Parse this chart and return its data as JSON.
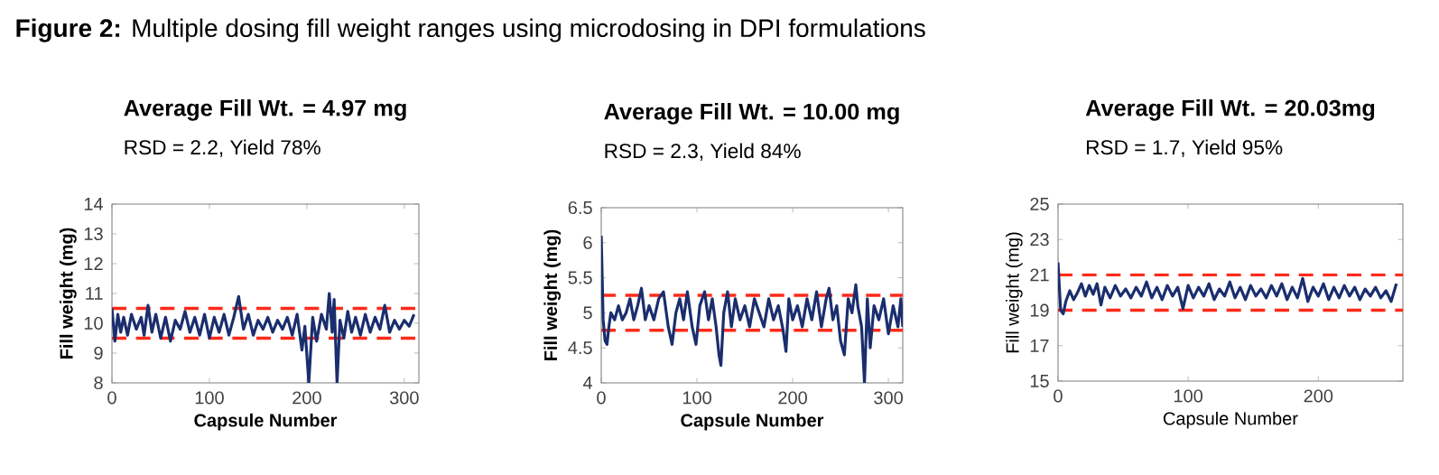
{
  "chart_data": [
    {
      "type": "line",
      "title": "Average Fill Wt. = 4.97 mg",
      "subtitle": "RSD = 2.2, Yield 78%",
      "xlabel": "Capsule Number",
      "ylabel": "Fill weight (mg)",
      "annotations": [
        "**Figure 2:** Multiple dosing fill weight ranges using microdosing in DPI formulations"
      ],
      "xlim": [
        0,
        315
      ],
      "xticks": [
        0,
        100,
        200,
        300
      ],
      "ylim": [
        8,
        14
      ],
      "yticks": [
        8,
        9,
        10,
        11,
        12,
        13,
        14
      ],
      "grid": false,
      "marker": "none",
      "line_style": "solid",
      "ref_lines": [
        {
          "axis": "y",
          "value": 9.5,
          "color": "#ff2a1a",
          "line_style": "dashed"
        },
        {
          "axis": "y",
          "value": 10.5,
          "color": "#ff2a1a",
          "line_style": "dashed"
        }
      ],
      "series": [
        {
          "color": "#1a2e6e",
          "x": [
            0,
            3,
            6,
            9,
            12,
            16,
            20,
            25,
            30,
            33,
            37,
            41,
            45,
            50,
            55,
            60,
            65,
            70,
            75,
            80,
            85,
            90,
            95,
            100,
            105,
            110,
            115,
            120,
            125,
            130,
            135,
            140,
            145,
            150,
            155,
            160,
            165,
            170,
            175,
            180,
            185,
            190,
            195,
            198,
            202,
            206,
            210,
            215,
            220,
            223,
            226,
            228,
            231,
            234,
            238,
            242,
            246,
            250,
            255,
            260,
            265,
            270,
            275,
            280,
            285,
            290,
            295,
            300,
            305,
            310
          ],
          "values": [
            10.5,
            9.4,
            10.3,
            9.7,
            10.2,
            9.6,
            10.3,
            9.8,
            10.2,
            9.6,
            10.6,
            9.7,
            10.3,
            9.5,
            10.2,
            9.4,
            10.1,
            9.8,
            10.4,
            9.7,
            10.2,
            9.6,
            10.3,
            9.5,
            10.2,
            9.7,
            10.3,
            9.6,
            10.2,
            10.9,
            9.8,
            10.3,
            9.6,
            10.1,
            9.8,
            10.2,
            9.7,
            10.1,
            9.8,
            10.2,
            9.6,
            10.3,
            9.1,
            9.9,
            8.0,
            10.2,
            9.4,
            10.3,
            9.8,
            11.0,
            9.7,
            10.8,
            8.0,
            10.1,
            9.5,
            10.4,
            9.7,
            10.2,
            9.6,
            10.3,
            9.7,
            10.2,
            9.8,
            10.6,
            9.7,
            10.1,
            9.8,
            10.1,
            9.9,
            10.3
          ]
        }
      ]
    },
    {
      "type": "line",
      "title": "Average Fill Wt. = 10.00 mg",
      "subtitle": "RSD = 2.3, Yield 84%",
      "xlabel": "Capsule Number",
      "ylabel": "Fill weight (mg)",
      "xlim": [
        0,
        315
      ],
      "xticks": [
        0,
        100,
        200,
        300
      ],
      "ylim": [
        4,
        6.5
      ],
      "yticks": [
        4,
        4.5,
        5,
        5.5,
        6,
        6.5
      ],
      "grid": false,
      "marker": "none",
      "line_style": "solid",
      "ref_lines": [
        {
          "axis": "y",
          "value": 4.75,
          "color": "#ff2a1a",
          "line_style": "dashed"
        },
        {
          "axis": "y",
          "value": 5.25,
          "color": "#ff2a1a",
          "line_style": "dashed"
        }
      ],
      "series": [
        {
          "color": "#1a2e6e",
          "x": [
            0,
            2,
            4,
            6,
            8,
            10,
            14,
            18,
            22,
            26,
            30,
            34,
            38,
            42,
            46,
            50,
            55,
            60,
            65,
            70,
            74,
            78,
            82,
            86,
            90,
            95,
            99,
            103,
            108,
            112,
            116,
            120,
            123,
            125,
            128,
            132,
            136,
            140,
            145,
            150,
            155,
            160,
            165,
            170,
            175,
            180,
            185,
            190,
            193,
            196,
            200,
            205,
            210,
            215,
            220,
            225,
            230,
            235,
            238,
            242,
            246,
            250,
            254,
            258,
            262,
            266,
            268,
            272,
            275,
            278,
            281,
            285,
            290,
            295,
            300,
            305,
            310,
            313,
            315
          ],
          "values": [
            6.1,
            4.9,
            4.6,
            4.55,
            4.8,
            5.0,
            4.9,
            5.1,
            4.9,
            5.0,
            5.2,
            4.9,
            5.1,
            5.35,
            4.9,
            5.1,
            4.9,
            5.2,
            5.3,
            4.8,
            4.55,
            5.0,
            5.2,
            4.9,
            5.3,
            4.8,
            4.55,
            5.1,
            5.3,
            4.9,
            5.2,
            4.8,
            4.4,
            4.25,
            5.0,
            5.3,
            4.8,
            5.2,
            4.9,
            5.1,
            4.8,
            5.2,
            5.0,
            4.8,
            5.2,
            4.9,
            5.1,
            4.75,
            4.45,
            5.2,
            4.9,
            5.1,
            4.8,
            5.2,
            4.9,
            5.3,
            4.8,
            5.2,
            5.35,
            4.9,
            5.1,
            4.6,
            4.4,
            5.2,
            5.0,
            5.4,
            5.1,
            4.8,
            4.0,
            5.2,
            4.5,
            5.1,
            4.9,
            5.2,
            4.7,
            5.1,
            4.8,
            5.2,
            4.8
          ]
        }
      ]
    },
    {
      "type": "line",
      "title": "Average Fill Wt. = 20.03mg",
      "subtitle": "RSD = 1.7, Yield  95%",
      "xlabel": "Capsule Number",
      "ylabel": "Fill weight (mg)",
      "xlim": [
        0,
        265
      ],
      "xticks": [
        0,
        100,
        200
      ],
      "ylim": [
        15,
        25
      ],
      "yticks": [
        15,
        17,
        19,
        21,
        23,
        25
      ],
      "grid": false,
      "marker": "none",
      "line_style": "solid",
      "ref_lines": [
        {
          "axis": "y",
          "value": 19,
          "color": "#ff2a1a",
          "line_style": "dashed"
        },
        {
          "axis": "y",
          "value": 21,
          "color": "#ff2a1a",
          "line_style": "dashed"
        }
      ],
      "series": [
        {
          "color": "#1a2e6e",
          "x": [
            0,
            2,
            4,
            6,
            9,
            12,
            15,
            18,
            21,
            24,
            27,
            30,
            33,
            36,
            40,
            44,
            48,
            52,
            56,
            60,
            64,
            68,
            72,
            76,
            80,
            84,
            88,
            92,
            96,
            100,
            104,
            108,
            112,
            116,
            120,
            124,
            128,
            132,
            136,
            140,
            144,
            148,
            152,
            156,
            160,
            164,
            168,
            172,
            176,
            180,
            184,
            188,
            192,
            196,
            200,
            204,
            208,
            212,
            216,
            220,
            224,
            228,
            232,
            236,
            240,
            244,
            248,
            252,
            256,
            260
          ],
          "values": [
            21.7,
            19.0,
            18.8,
            19.5,
            20.1,
            19.6,
            20.0,
            20.5,
            19.8,
            20.4,
            19.9,
            20.5,
            19.3,
            20.3,
            19.7,
            20.4,
            19.8,
            20.2,
            19.7,
            20.3,
            19.8,
            20.6,
            19.7,
            20.3,
            19.6,
            20.4,
            19.8,
            20.3,
            19.1,
            20.4,
            19.7,
            20.3,
            19.8,
            20.5,
            19.6,
            20.2,
            19.8,
            20.6,
            19.7,
            20.3,
            19.6,
            20.4,
            19.8,
            20.2,
            19.7,
            20.4,
            19.8,
            20.5,
            19.6,
            20.3,
            19.7,
            20.8,
            19.5,
            20.3,
            19.8,
            20.5,
            19.6,
            20.3,
            19.7,
            20.4,
            19.8,
            20.3,
            19.6,
            20.2,
            19.8,
            20.3,
            19.7,
            20.1,
            19.5,
            20.5
          ]
        }
      ]
    }
  ]
}
